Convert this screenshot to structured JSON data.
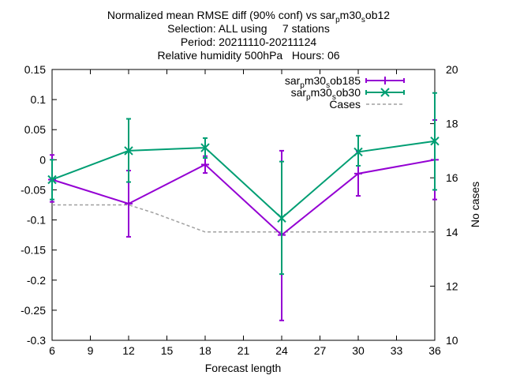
{
  "chart_data": {
    "type": "line",
    "title_lines": [
      "Normalized mean RMSE diff (90% conf) vs sar_pm30_sob12",
      "Selection: ALL using     7 stations",
      "Period: 20211110-20211124",
      "Relative humidity 500hPa   Hours: 06"
    ],
    "xlabel": "Forecast length",
    "ylabel_right": "No cases",
    "x_ticks": [
      "6",
      "9",
      "12",
      "15",
      "18",
      "21",
      "24",
      "27",
      "30",
      "33",
      "36"
    ],
    "y_ticks": [
      "0.15",
      "0.1",
      "0.05",
      "0",
      "-0.05",
      "-0.1",
      "-0.15",
      "-0.2",
      "-0.25",
      "-0.3"
    ],
    "y2_ticks": [
      "20",
      "18",
      "16",
      "14",
      "12",
      "10"
    ],
    "xlim": [
      6,
      36
    ],
    "ylim": [
      -0.3,
      0.15
    ],
    "y2lim": [
      10,
      20
    ],
    "grid": false,
    "legend_position": "top-right",
    "x": [
      6,
      12,
      18,
      24,
      30,
      36
    ],
    "series": [
      {
        "name": "sar_pm30_sob185",
        "color": "#9400d3",
        "marker": "plus",
        "values": [
          -0.033,
          -0.073,
          -0.008,
          -0.125,
          -0.023,
          0.0
        ],
        "err_low": [
          -0.07,
          -0.128,
          -0.022,
          -0.267,
          -0.06,
          -0.066
        ],
        "err_high": [
          0.008,
          -0.018,
          0.006,
          0.015,
          0.014,
          0.066
        ]
      },
      {
        "name": "sar_pm30_sob30",
        "color": "#009e73",
        "marker": "cross",
        "values": [
          -0.033,
          0.015,
          0.02,
          -0.097,
          0.013,
          0.031
        ],
        "err_low": [
          -0.066,
          -0.037,
          0.003,
          -0.19,
          -0.01,
          -0.05
        ],
        "err_high": [
          0.0,
          0.068,
          0.036,
          -0.003,
          0.04,
          0.111
        ]
      }
    ],
    "cases": {
      "name": "Cases",
      "color": "#a0a0a0",
      "x": [
        6,
        12,
        14,
        18,
        24,
        30,
        36
      ],
      "values": [
        15,
        15,
        14.7,
        14,
        14,
        14,
        14
      ]
    }
  }
}
